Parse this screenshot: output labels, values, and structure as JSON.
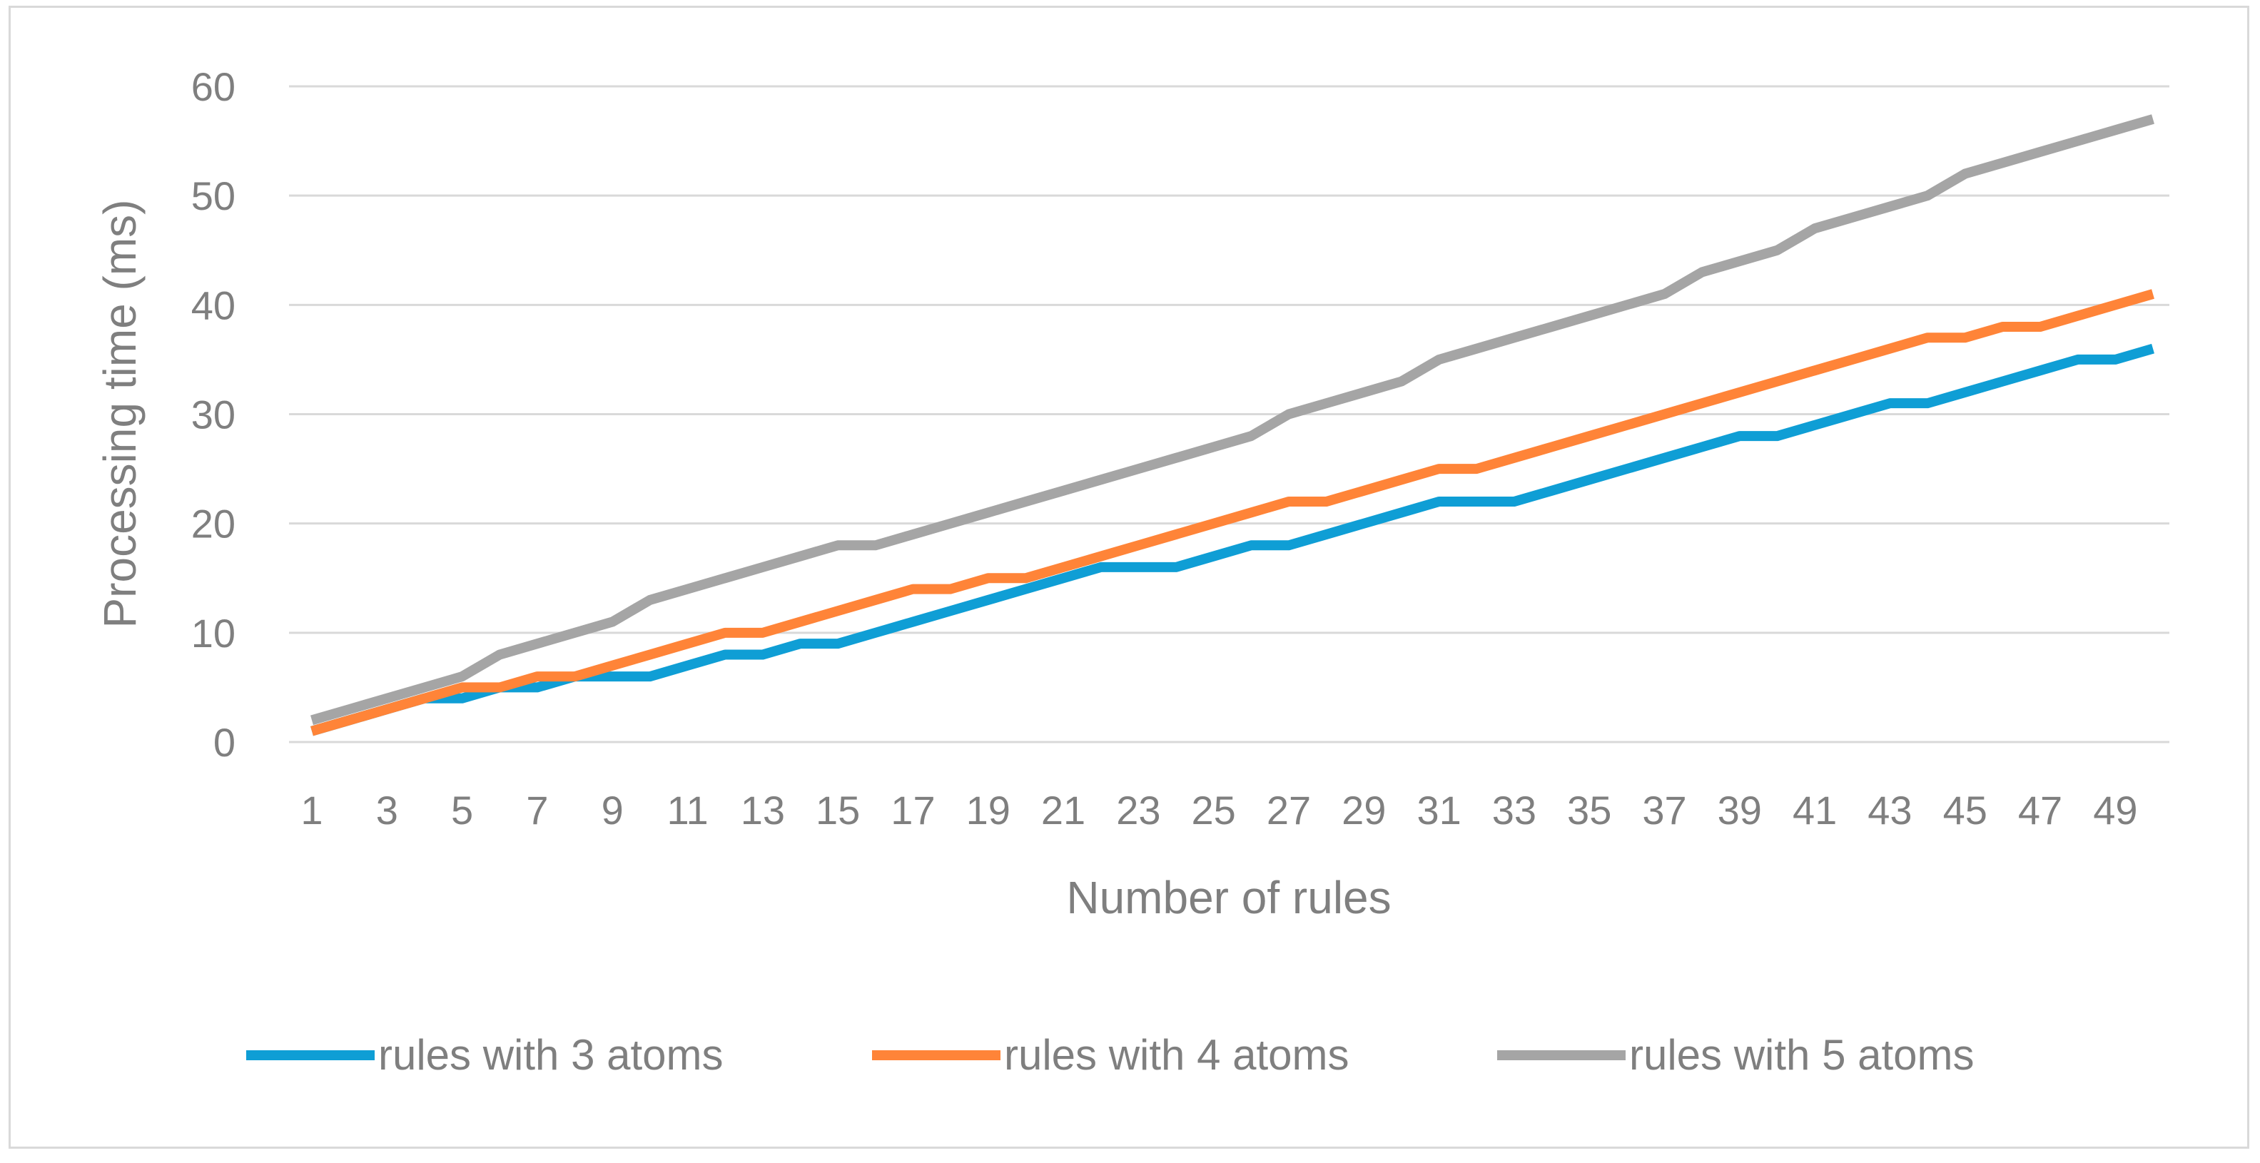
{
  "chart_data": {
    "type": "line",
    "xlabel": "Number of rules",
    "ylabel": "Processing time (ms)",
    "ylim": [
      0,
      60
    ],
    "yticks": [
      0,
      10,
      20,
      30,
      40,
      50,
      60
    ],
    "x": [
      1,
      2,
      3,
      4,
      5,
      6,
      7,
      8,
      9,
      10,
      11,
      12,
      13,
      14,
      15,
      16,
      17,
      18,
      19,
      20,
      21,
      22,
      23,
      24,
      25,
      26,
      27,
      28,
      29,
      30,
      31,
      32,
      33,
      34,
      35,
      36,
      37,
      38,
      39,
      40,
      41,
      42,
      43,
      44,
      45,
      46,
      47,
      48,
      49,
      50
    ],
    "xtick_labels": [
      "1",
      "3",
      "5",
      "7",
      "9",
      "11",
      "13",
      "15",
      "17",
      "19",
      "21",
      "23",
      "25",
      "27",
      "29",
      "31",
      "33",
      "35",
      "37",
      "39",
      "41",
      "43",
      "45",
      "47",
      "49"
    ],
    "grid": true,
    "legend_position": "bottom",
    "series": [
      {
        "name": "rules with 3 atoms",
        "color": "#0f9ed5",
        "values": [
          1,
          2,
          3,
          4,
          4,
          5,
          5,
          6,
          6,
          6,
          7,
          8,
          8,
          9,
          9,
          10,
          11,
          12,
          13,
          14,
          15,
          16,
          16,
          16,
          17,
          18,
          18,
          19,
          20,
          21,
          22,
          22,
          22,
          23,
          24,
          25,
          26,
          27,
          28,
          28,
          29,
          30,
          31,
          31,
          32,
          33,
          34,
          35,
          35,
          36
        ]
      },
      {
        "name": "rules with 4 atoms",
        "color": "#ff8438",
        "values": [
          1,
          2,
          3,
          4,
          5,
          5,
          6,
          6,
          7,
          8,
          9,
          10,
          10,
          11,
          12,
          13,
          14,
          14,
          15,
          15,
          16,
          17,
          18,
          19,
          20,
          21,
          22,
          22,
          23,
          24,
          25,
          25,
          26,
          27,
          28,
          29,
          30,
          31,
          32,
          33,
          34,
          35,
          36,
          37,
          37,
          38,
          38,
          39,
          40,
          41
        ]
      },
      {
        "name": "rules with 5 atoms",
        "color": "#a5a5a5",
        "values": [
          2,
          3,
          4,
          5,
          6,
          8,
          9,
          10,
          11,
          13,
          14,
          15,
          16,
          17,
          18,
          18,
          19,
          20,
          21,
          22,
          23,
          24,
          25,
          26,
          27,
          28,
          30,
          31,
          32,
          33,
          35,
          36,
          37,
          38,
          39,
          40,
          41,
          43,
          44,
          45,
          47,
          48,
          49,
          50,
          52,
          53,
          54,
          55,
          56,
          57
        ]
      }
    ]
  }
}
